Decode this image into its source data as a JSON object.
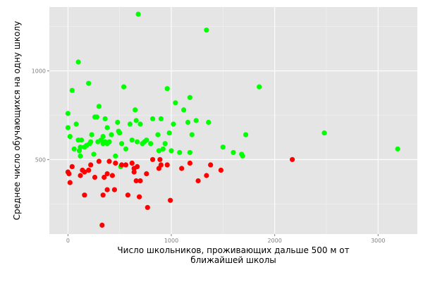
{
  "colors": {
    "panel": "#e5e5e5",
    "grid_major": "#ffffff",
    "grid_minor": "#f2f2f2",
    "tick_text": "#7f7f7f"
  },
  "chart_data": {
    "type": "scatter",
    "xlabel_lines": [
      "Число школьников, проживающих дальше 500 м от",
      "ближайшей школы"
    ],
    "ylabel": "Среднее число обучающихся на одну школу",
    "xlim": [
      -180,
      3380
    ],
    "ylim": [
      80,
      1360
    ],
    "x_ticks": [
      0,
      1000,
      2000,
      3000
    ],
    "x_tick_labels": [
      "0",
      "1000",
      "2000",
      "3000"
    ],
    "y_ticks": [
      500,
      1000
    ],
    "y_tick_labels": [
      "500",
      "1000"
    ],
    "grid": true,
    "series": [
      {
        "color": "#00ff00",
        "points": [
          [
            0,
            760
          ],
          [
            0,
            680
          ],
          [
            20,
            630
          ],
          [
            40,
            890
          ],
          [
            60,
            560
          ],
          [
            80,
            700
          ],
          [
            100,
            1050
          ],
          [
            100,
            610
          ],
          [
            110,
            550
          ],
          [
            120,
            570
          ],
          [
            120,
            520
          ],
          [
            130,
            610
          ],
          [
            160,
            570
          ],
          [
            180,
            580
          ],
          [
            200,
            930
          ],
          [
            210,
            590
          ],
          [
            220,
            600
          ],
          [
            230,
            640
          ],
          [
            250,
            530
          ],
          [
            260,
            740
          ],
          [
            280,
            740
          ],
          [
            290,
            600
          ],
          [
            300,
            800
          ],
          [
            320,
            610
          ],
          [
            340,
            590
          ],
          [
            340,
            630
          ],
          [
            360,
            730
          ],
          [
            360,
            600
          ],
          [
            380,
            680
          ],
          [
            380,
            590
          ],
          [
            400,
            600
          ],
          [
            420,
            640
          ],
          [
            460,
            520
          ],
          [
            480,
            710
          ],
          [
            490,
            660
          ],
          [
            500,
            650
          ],
          [
            510,
            460
          ],
          [
            520,
            590
          ],
          [
            540,
            910
          ],
          [
            560,
            560
          ],
          [
            600,
            700
          ],
          [
            620,
            610
          ],
          [
            650,
            780
          ],
          [
            660,
            720
          ],
          [
            670,
            600
          ],
          [
            680,
            1320
          ],
          [
            700,
            700
          ],
          [
            720,
            590
          ],
          [
            740,
            600
          ],
          [
            760,
            610
          ],
          [
            800,
            590
          ],
          [
            820,
            730
          ],
          [
            870,
            640
          ],
          [
            880,
            550
          ],
          [
            900,
            730
          ],
          [
            920,
            560
          ],
          [
            940,
            590
          ],
          [
            960,
            900
          ],
          [
            980,
            650
          ],
          [
            1000,
            550
          ],
          [
            1020,
            700
          ],
          [
            1040,
            820
          ],
          [
            1080,
            540
          ],
          [
            1120,
            780
          ],
          [
            1160,
            710
          ],
          [
            1180,
            540
          ],
          [
            1180,
            850
          ],
          [
            1200,
            640
          ],
          [
            1240,
            720
          ],
          [
            1340,
            1230
          ],
          [
            1360,
            710
          ],
          [
            1500,
            570
          ],
          [
            1600,
            540
          ],
          [
            1680,
            530
          ],
          [
            1690,
            520
          ],
          [
            1720,
            640
          ],
          [
            1850,
            910
          ],
          [
            2480,
            650
          ],
          [
            3190,
            560
          ]
        ]
      },
      {
        "color": "#ff0000",
        "points": [
          [
            0,
            430
          ],
          [
            10,
            420
          ],
          [
            20,
            370
          ],
          [
            40,
            460
          ],
          [
            120,
            410
          ],
          [
            140,
            440
          ],
          [
            160,
            300
          ],
          [
            160,
            430
          ],
          [
            200,
            440
          ],
          [
            220,
            470
          ],
          [
            260,
            400
          ],
          [
            300,
            490
          ],
          [
            330,
            130
          ],
          [
            340,
            300
          ],
          [
            350,
            400
          ],
          [
            380,
            330
          ],
          [
            380,
            420
          ],
          [
            400,
            490
          ],
          [
            430,
            410
          ],
          [
            450,
            330
          ],
          [
            460,
            480
          ],
          [
            520,
            470
          ],
          [
            560,
            470
          ],
          [
            580,
            300
          ],
          [
            620,
            480
          ],
          [
            640,
            430
          ],
          [
            640,
            450
          ],
          [
            660,
            380
          ],
          [
            670,
            460
          ],
          [
            690,
            290
          ],
          [
            700,
            380
          ],
          [
            760,
            420
          ],
          [
            770,
            230
          ],
          [
            820,
            500
          ],
          [
            880,
            450
          ],
          [
            890,
            500
          ],
          [
            900,
            470
          ],
          [
            960,
            470
          ],
          [
            990,
            270
          ],
          [
            1100,
            450
          ],
          [
            1180,
            480
          ],
          [
            1260,
            380
          ],
          [
            1340,
            410
          ],
          [
            1380,
            470
          ],
          [
            1480,
            440
          ],
          [
            2170,
            500
          ]
        ]
      }
    ]
  }
}
